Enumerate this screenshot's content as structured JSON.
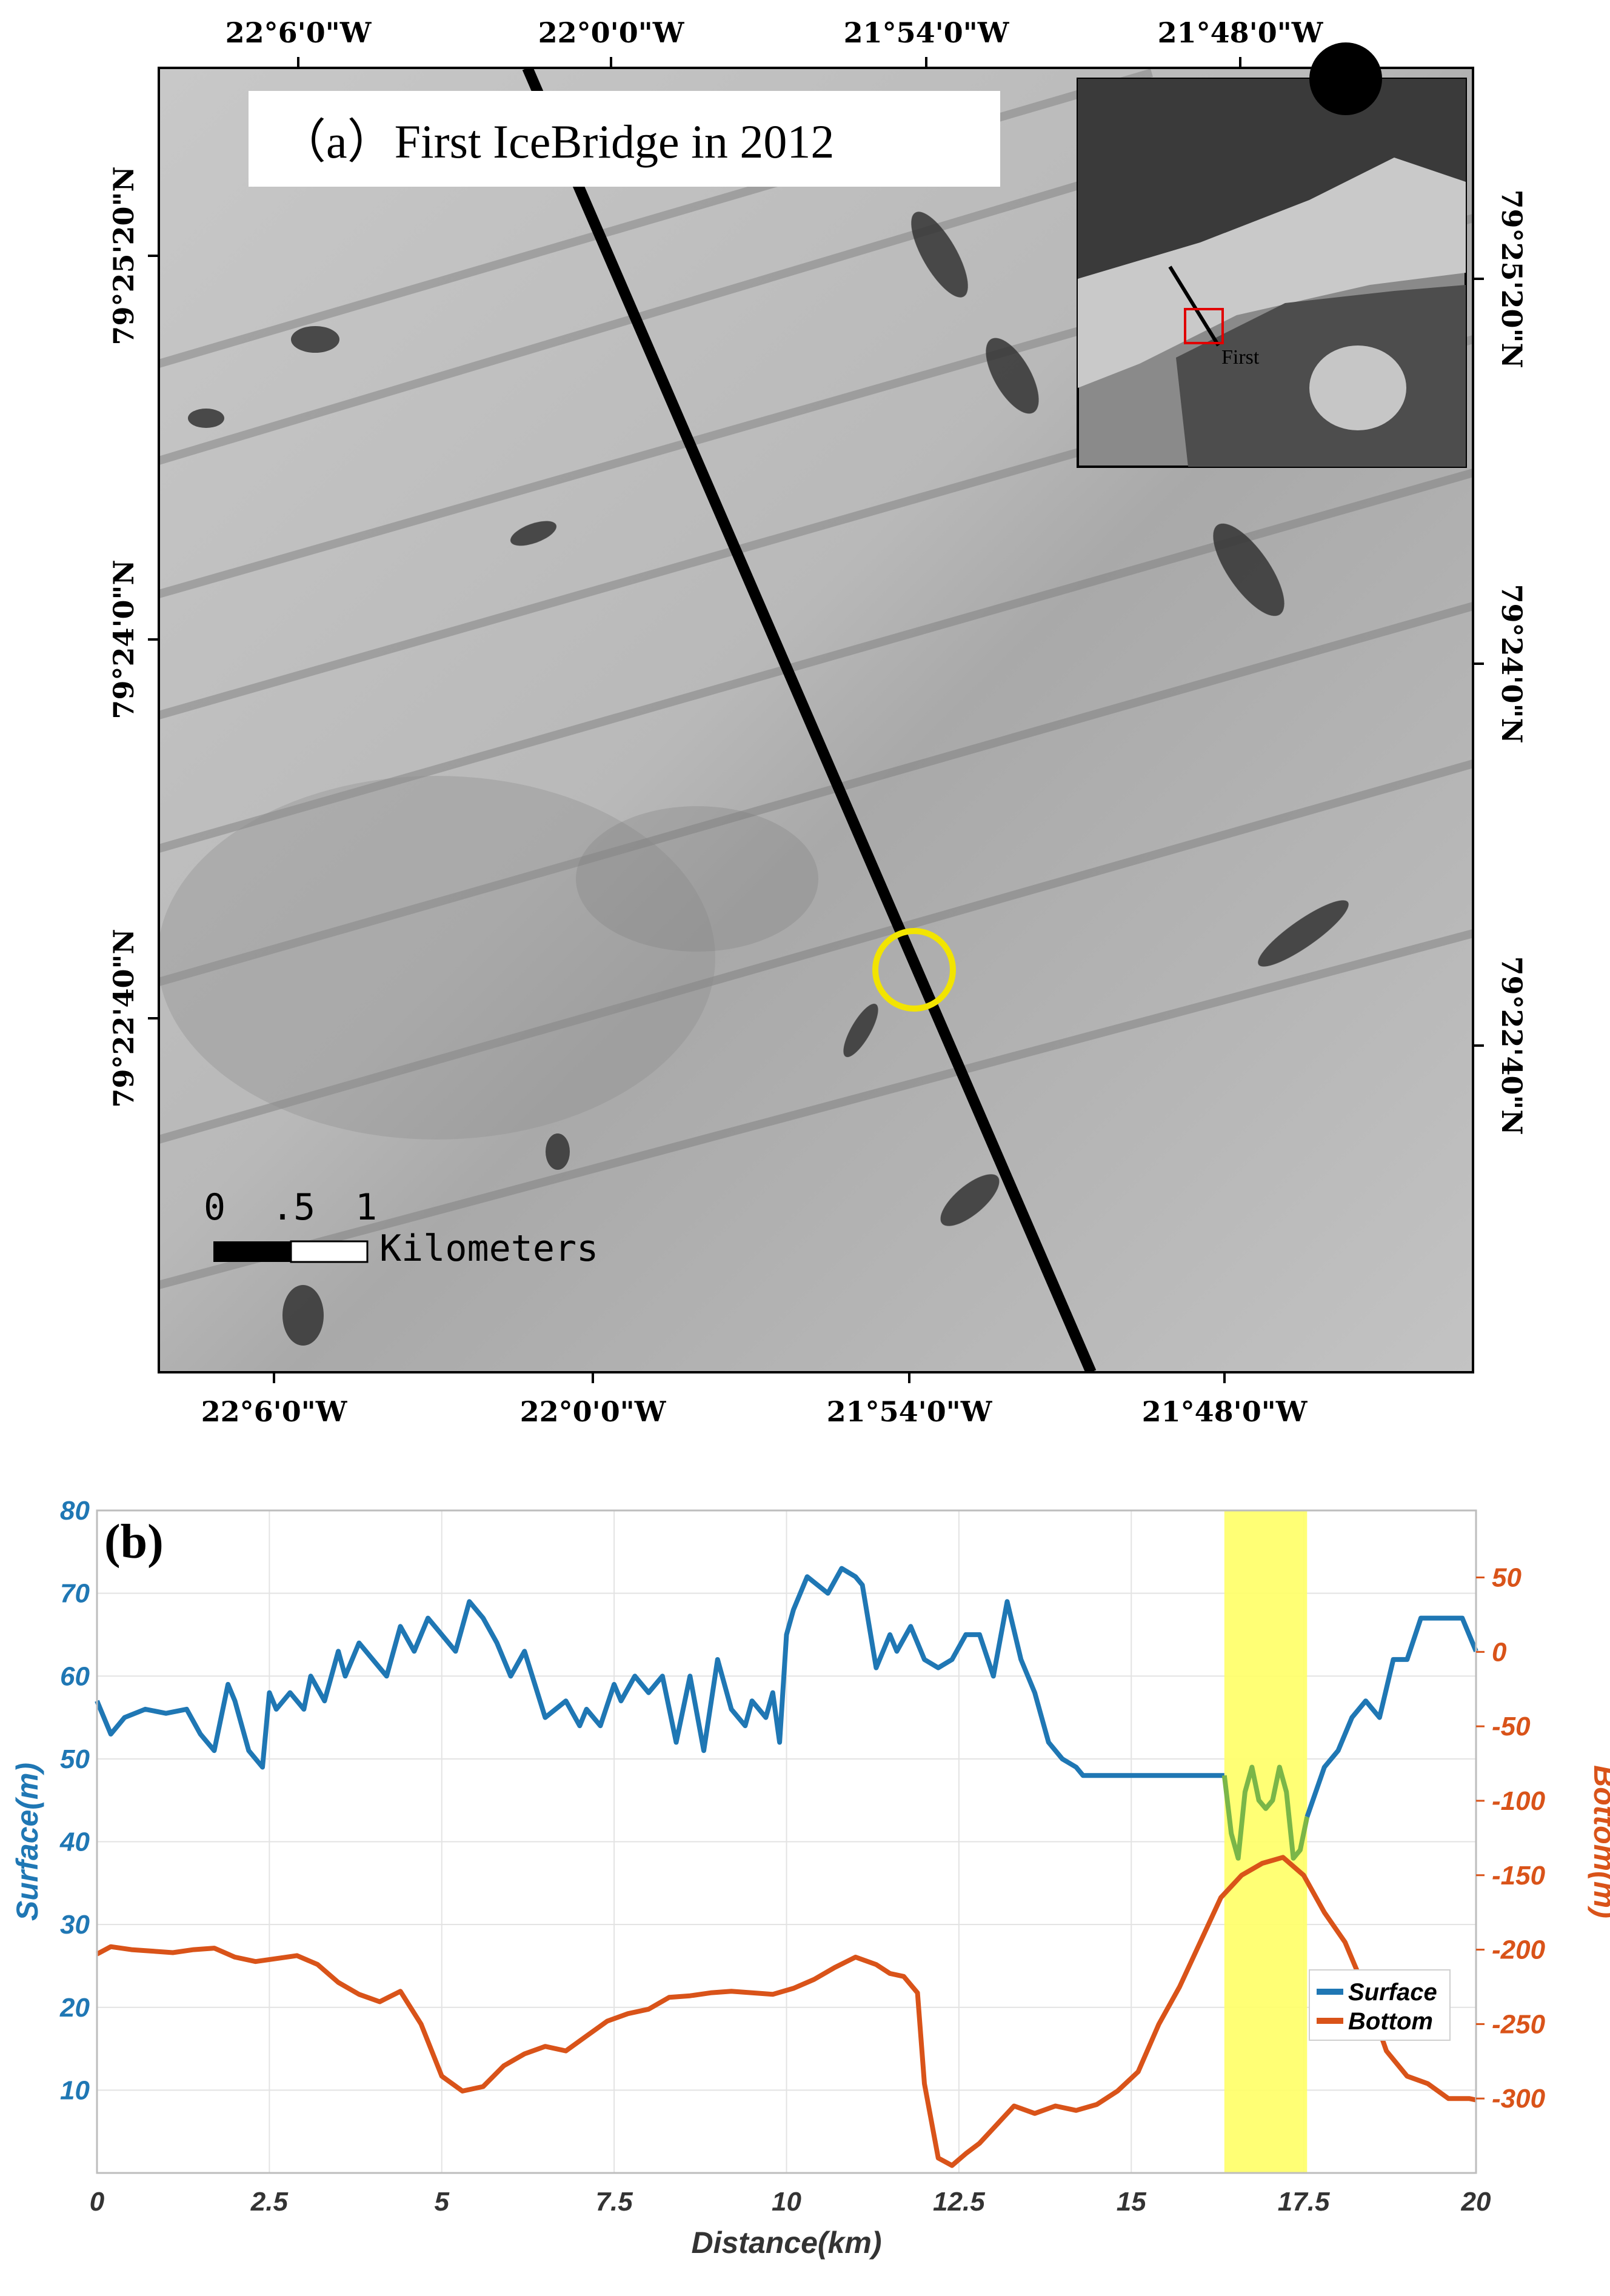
{
  "panel_a": {
    "title": "（a）First IceBridge in 2012",
    "top_lon_labels": [
      "22°6'0\"W",
      "22°0'0\"W",
      "21°54'0\"W",
      "21°48'0\"W"
    ],
    "bottom_lon_labels": [
      "22°6'0\"W",
      "22°0'0\"W",
      "21°54'0\"W",
      "21°48'0\"W"
    ],
    "lat_labels": [
      "79°25'20\"N",
      "79°24'0\"N",
      "79°22'40\"N"
    ],
    "inset_label": "First",
    "scale_bar": {
      "ticks": [
        "0",
        ".5",
        "1"
      ],
      "unit": "Kilometers"
    }
  },
  "colors": {
    "surface": "#1f77b4",
    "bottom": "#d95319",
    "highlight": "#ffff66",
    "surface_highlighted": "#7ab648",
    "marker_circle": "#f2e400"
  },
  "chart_data": {
    "type": "line",
    "panel_label": "(b)",
    "xlabel": "Distance(km)",
    "ylabel_left": "Surface(m)",
    "ylabel_right": "Bottom(m)",
    "xlim": [
      0,
      20
    ],
    "ylim_left": [
      0,
      80
    ],
    "ylim_right": [
      -350,
      95
    ],
    "x_ticks": [
      "0",
      "2.5",
      "5",
      "7.5",
      "10",
      "12.5",
      "15",
      "17.5",
      "20"
    ],
    "y_left_ticks": [
      "10",
      "20",
      "30",
      "40",
      "50",
      "60",
      "70",
      "80"
    ],
    "y_right_ticks": [
      "-300",
      "-250",
      "-200",
      "-150",
      "-100",
      "-50",
      "0",
      "50"
    ],
    "grid": true,
    "legend_position": "right",
    "highlight_x_range": [
      16.35,
      17.55
    ],
    "series": [
      {
        "name": "Surface",
        "axis": "left",
        "x": [
          0,
          0.2,
          0.4,
          0.7,
          1.0,
          1.3,
          1.5,
          1.7,
          1.9,
          2.0,
          2.2,
          2.4,
          2.5,
          2.6,
          2.8,
          3.0,
          3.1,
          3.3,
          3.5,
          3.6,
          3.8,
          4.0,
          4.2,
          4.4,
          4.6,
          4.8,
          5.0,
          5.2,
          5.4,
          5.6,
          5.8,
          6.0,
          6.2,
          6.5,
          6.8,
          7.0,
          7.1,
          7.3,
          7.5,
          7.6,
          7.8,
          8.0,
          8.2,
          8.4,
          8.6,
          8.8,
          9.0,
          9.2,
          9.4,
          9.5,
          9.7,
          9.8,
          9.9,
          10.0,
          10.1,
          10.3,
          10.6,
          10.8,
          11.0,
          11.1,
          11.3,
          11.5,
          11.6,
          11.8,
          12.0,
          12.2,
          12.4,
          12.6,
          12.8,
          13.0,
          13.2,
          13.4,
          13.6,
          13.8,
          14.0,
          14.2,
          14.3,
          14.5,
          14.7,
          14.9,
          15.0,
          15.2,
          15.4,
          15.6,
          15.8,
          16.0,
          16.2,
          16.35
        ],
        "y": [
          57,
          53,
          55,
          56,
          55.5,
          56,
          53,
          51,
          59,
          57,
          51,
          49,
          58,
          56,
          58,
          56,
          60,
          57,
          63,
          60,
          64,
          62,
          60,
          66,
          63,
          67,
          65,
          63,
          69,
          67,
          64,
          60,
          63,
          55,
          57,
          54,
          56,
          54,
          59,
          57,
          60,
          58,
          60,
          52,
          60,
          51,
          62,
          56,
          54,
          57,
          55,
          58,
          52,
          65,
          68,
          72,
          70,
          73,
          72,
          71,
          61,
          65,
          63,
          66,
          62,
          61,
          62,
          65,
          65,
          60,
          69,
          62,
          58,
          52,
          50,
          49,
          48,
          48,
          48,
          48,
          48,
          48,
          48,
          48,
          48,
          48,
          48,
          48
        ],
        "color_key": "surface"
      },
      {
        "name": "Bottom",
        "axis": "right",
        "x": [
          0,
          0.2,
          0.5,
          0.8,
          1.1,
          1.4,
          1.7,
          2.0,
          2.3,
          2.6,
          2.9,
          3.2,
          3.5,
          3.8,
          4.1,
          4.4,
          4.7,
          5.0,
          5.3,
          5.6,
          5.9,
          6.2,
          6.5,
          6.8,
          7.1,
          7.4,
          7.7,
          8.0,
          8.3,
          8.6,
          8.9,
          9.2,
          9.5,
          9.8,
          10.1,
          10.4,
          10.7,
          11.0,
          11.3,
          11.5,
          11.7,
          11.9,
          12.0,
          12.2,
          12.4,
          12.6,
          12.8,
          13.0,
          13.3,
          13.6,
          13.9,
          14.2,
          14.5,
          14.8,
          15.1,
          15.4,
          15.7,
          16.0,
          16.3,
          16.6,
          16.9,
          17.2,
          17.5,
          17.8,
          18.1,
          18.4,
          18.7,
          19.0,
          19.3,
          19.6,
          19.9,
          20.0
        ],
        "y": [
          -203,
          -198,
          -200,
          -201,
          -202,
          -200,
          -199,
          -205,
          -208,
          -206,
          -204,
          -210,
          -222,
          -230,
          -235,
          -228,
          -250,
          -285,
          -295,
          -292,
          -278,
          -270,
          -265,
          -268,
          -258,
          -248,
          -243,
          -240,
          -232,
          -231,
          -229,
          -228,
          -229,
          -230,
          -226,
          -220,
          -212,
          -205,
          -210,
          -216,
          -218,
          -229,
          -290,
          -340,
          -345,
          -337,
          -330,
          -320,
          -305,
          -310,
          -305,
          -308,
          -304,
          -295,
          -282,
          -250,
          -225,
          -195,
          -165,
          -150,
          -142,
          -138,
          -150,
          -175,
          -195,
          -228,
          -268,
          -285,
          -290,
          -300,
          -300,
          -301
        ],
        "color_key": "bottom"
      },
      {
        "name": "",
        "axis": "left",
        "x": [
          16.35,
          16.45,
          16.55,
          16.65,
          16.75,
          16.85,
          16.95,
          17.05,
          17.15,
          17.25,
          17.35,
          17.45,
          17.55
        ],
        "y": [
          48,
          41,
          38,
          46,
          49,
          45,
          44,
          45,
          49,
          46,
          38,
          39,
          43
        ],
        "color_key": "surface_highlighted"
      },
      {
        "name": "",
        "axis": "left",
        "x": [
          17.55,
          17.8,
          18.0,
          18.2,
          18.4,
          18.6,
          18.8,
          19.0,
          19.2,
          19.5,
          19.8,
          20.0
        ],
        "y": [
          43,
          49,
          51,
          55,
          57,
          55,
          62,
          62,
          67,
          67,
          67,
          63
        ],
        "color_key": "surface"
      }
    ],
    "legend": [
      {
        "label": "Surface",
        "color_key": "surface"
      },
      {
        "label": "Bottom",
        "color_key": "bottom"
      }
    ]
  }
}
